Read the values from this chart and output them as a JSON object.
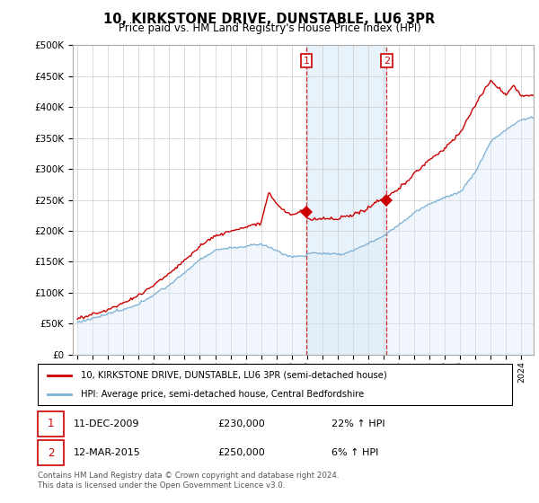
{
  "title": "10, KIRKSTONE DRIVE, DUNSTABLE, LU6 3PR",
  "subtitle": "Price paid vs. HM Land Registry's House Price Index (HPI)",
  "legend_line1": "10, KIRKSTONE DRIVE, DUNSTABLE, LU6 3PR (semi-detached house)",
  "legend_line2": "HPI: Average price, semi-detached house, Central Bedfordshire",
  "footnote": "Contains HM Land Registry data © Crown copyright and database right 2024.\nThis data is licensed under the Open Government Licence v3.0.",
  "transaction1_date": "11-DEC-2009",
  "transaction1_price": "£230,000",
  "transaction1_hpi": "22% ↑ HPI",
  "transaction2_date": "12-MAR-2015",
  "transaction2_price": "£250,000",
  "transaction2_hpi": "6% ↑ HPI",
  "property_color": "#cc0000",
  "hpi_color": "#7bafd4",
  "hpi_fill_color": "#daeaf7",
  "shaded_region_color": "#daeaf7",
  "transaction1_x": 2009.95,
  "transaction1_y": 230000,
  "transaction2_x": 2015.2,
  "transaction2_y": 250000,
  "shaded_x1": 2009.95,
  "shaded_x2": 2015.2,
  "ylim": [
    0,
    500000
  ],
  "xlim_min": 1994.7,
  "xlim_max": 2024.8
}
